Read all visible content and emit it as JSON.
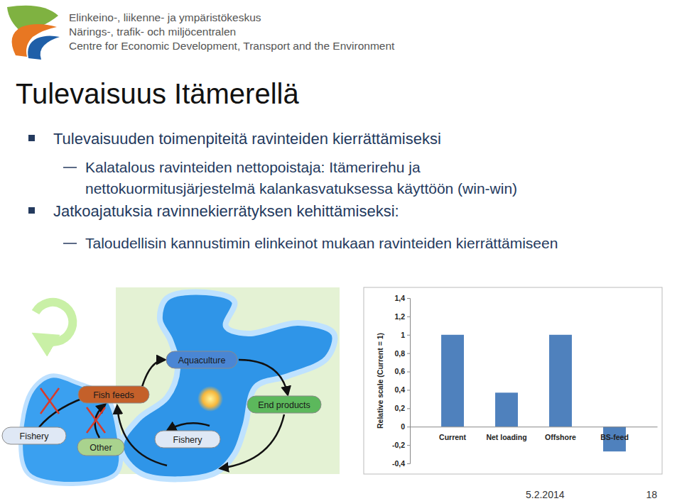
{
  "header": {
    "org_lines": [
      "Elinkeino-, liikenne- ja ympäristökeskus",
      "Närings-, trafik- och miljöcentralen",
      "Centre for Economic Development, Transport and the Environment"
    ]
  },
  "title": "Tulevaisuus Itämerellä",
  "bullets": [
    {
      "text": "Tulevaisuuden toimenpiteitä ravinteiden kierrättämiseksi",
      "sub": [
        {
          "lines": [
            "Kalatalous ravinteiden nettopoistaja: Itämerirehu ja",
            "nettokuormitusjärjestelmä kalankasvatuksessa käyttöön (win-win)"
          ]
        }
      ]
    },
    {
      "text": "Jatkoajatuksia ravinnekierrätyksen kehittämiseksi:",
      "sub": [
        {
          "lines": [
            "Taloudellisin kannustimin elinkeinot mukaan ravinteiden kierrättämiseen"
          ]
        }
      ]
    }
  ],
  "diagram": {
    "nodes": [
      {
        "label": "Aquaculture"
      },
      {
        "label": "Fish feeds"
      },
      {
        "label": "End products"
      },
      {
        "label": "Fishery"
      },
      {
        "label": "Other"
      },
      {
        "label": "Fishery"
      }
    ]
  },
  "chart_data": {
    "type": "bar",
    "categories": [
      "Current",
      "Net loading",
      "Offshore",
      "BS-feed"
    ],
    "values": [
      1,
      0.37,
      1,
      -0.27
    ],
    "color": "#4f81bd",
    "ylabel": "Relative scale (Current = 1)",
    "ylim": [
      -0.4,
      1.4
    ],
    "yticks": [
      {
        "value": -0.4,
        "label": "-0,4"
      },
      {
        "value": -0.2,
        "label": "-0,2"
      },
      0,
      {
        "value": 0.2,
        "label": "0,2"
      },
      {
        "value": 0.4,
        "label": "0,4"
      },
      {
        "value": 0.6,
        "label": "0,6"
      },
      {
        "value": 0.8,
        "label": "0,8"
      },
      1,
      {
        "value": 1.2,
        "label": "1,2"
      },
      {
        "value": 1.4,
        "label": "1,4"
      }
    ],
    "grid": false
  },
  "footer": {
    "date": "5.2.2014",
    "page": "18"
  }
}
